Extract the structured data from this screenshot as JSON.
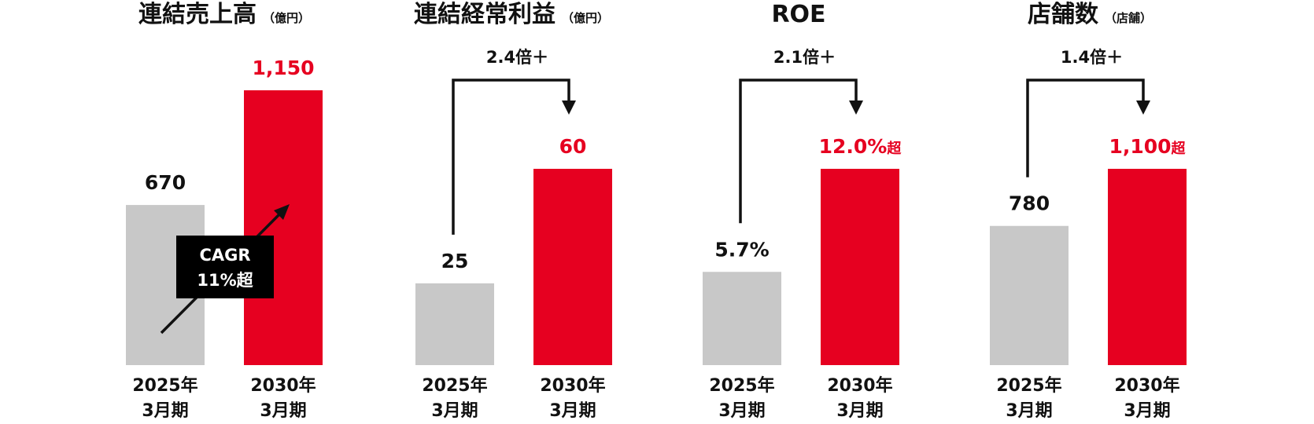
{
  "colors": {
    "prior": "#C8C8C8",
    "target": "#E60020",
    "text": "#111111",
    "arrow": "#111111",
    "badge_bg": "#000000",
    "badge_text": "#ffffff"
  },
  "chart_data": [
    {
      "type": "bar",
      "title": "連結売上高",
      "unit": "（億円）",
      "categories": [
        "2025年\n3月期",
        "2030年\n3月期"
      ],
      "values": [
        670,
        1150
      ],
      "value_labels": [
        "670",
        "1,150"
      ],
      "ylim": [
        0,
        1150
      ],
      "annotation": {
        "kind": "cagr",
        "line1": "CAGR",
        "line2": "11%超"
      }
    },
    {
      "type": "bar",
      "title": "連結経常利益",
      "unit": "（億円）",
      "categories": [
        "2025年\n3月期",
        "2030年\n3月期"
      ],
      "values": [
        25,
        60
      ],
      "value_labels": [
        "25",
        "60"
      ],
      "ylim": [
        0,
        60
      ],
      "annotation": {
        "kind": "growth",
        "text": "2.4倍＋"
      }
    },
    {
      "type": "bar",
      "title": "ROE",
      "unit": "",
      "categories": [
        "2025年\n3月期",
        "2030年\n3月期"
      ],
      "values": [
        5.7,
        12.0
      ],
      "value_labels": [
        "5.7%",
        "12.0%超"
      ],
      "ylim": [
        0,
        12.0
      ],
      "annotation": {
        "kind": "growth",
        "text": "2.1倍＋"
      }
    },
    {
      "type": "bar",
      "title": "店舗数",
      "unit": "（店舗）",
      "categories": [
        "2025年\n3月期",
        "2030年\n3月期"
      ],
      "values": [
        780,
        1100
      ],
      "value_labels": [
        "780",
        "1,100超"
      ],
      "ylim": [
        0,
        1100
      ],
      "annotation": {
        "kind": "growth",
        "text": "1.4倍＋"
      }
    }
  ]
}
